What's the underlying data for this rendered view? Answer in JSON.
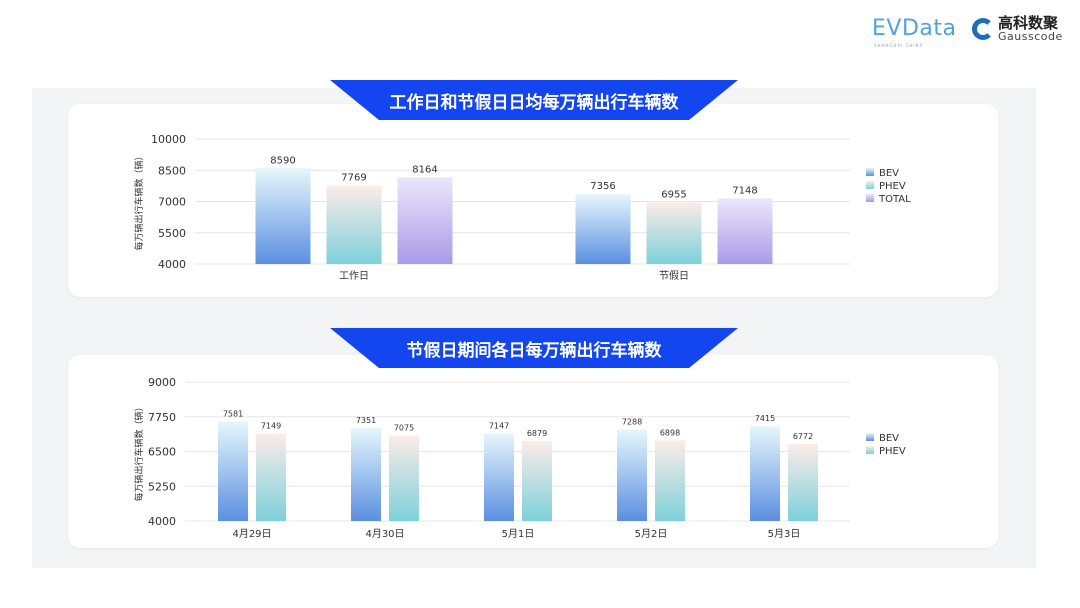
{
  "logos": {
    "evdata": "EVData",
    "evdata_sub": "SHANGHAI CHINA",
    "gauss_cn": "高科数聚",
    "gauss_en": "Gausscode"
  },
  "colors": {
    "banner": "#1346f0",
    "bev": [
      "#e6f7fc",
      "#5b8fe0"
    ],
    "phev": [
      "#fcece8",
      "#7dd0da"
    ],
    "total": [
      "#ebe7fb",
      "#a99be8"
    ]
  },
  "chart_data": [
    {
      "type": "bar",
      "title": "工作日和节假日日均每万辆出行车辆数",
      "ylabel": "每万辆出行车辆数（辆）",
      "categories": [
        "工作日",
        "节假日"
      ],
      "ylim": [
        4000,
        10000
      ],
      "yticks": [
        "4000",
        "5500",
        "7000",
        "8500",
        "10000"
      ],
      "grid": true,
      "legend": "right",
      "series": [
        {
          "name": "BEV",
          "values": [
            8590,
            7356
          ]
        },
        {
          "name": "PHEV",
          "values": [
            7769,
            6955
          ]
        },
        {
          "name": "TOTAL",
          "values": [
            8164,
            7148
          ]
        }
      ]
    },
    {
      "type": "bar",
      "title": "节假日期间各日每万辆出行车辆数",
      "ylabel": "每万辆出行车辆数（辆）",
      "categories": [
        "4月29日",
        "4月30日",
        "5月1日",
        "5月2日",
        "5月3日"
      ],
      "ylim": [
        4000,
        9000
      ],
      "yticks": [
        "4000",
        "5250",
        "6500",
        "7750",
        "9000"
      ],
      "grid": true,
      "legend": "right",
      "series": [
        {
          "name": "BEV",
          "values": [
            7581,
            7351,
            7147,
            7288,
            7415
          ]
        },
        {
          "name": "PHEV",
          "values": [
            7149,
            7075,
            6879,
            6898,
            6772
          ]
        }
      ]
    }
  ]
}
